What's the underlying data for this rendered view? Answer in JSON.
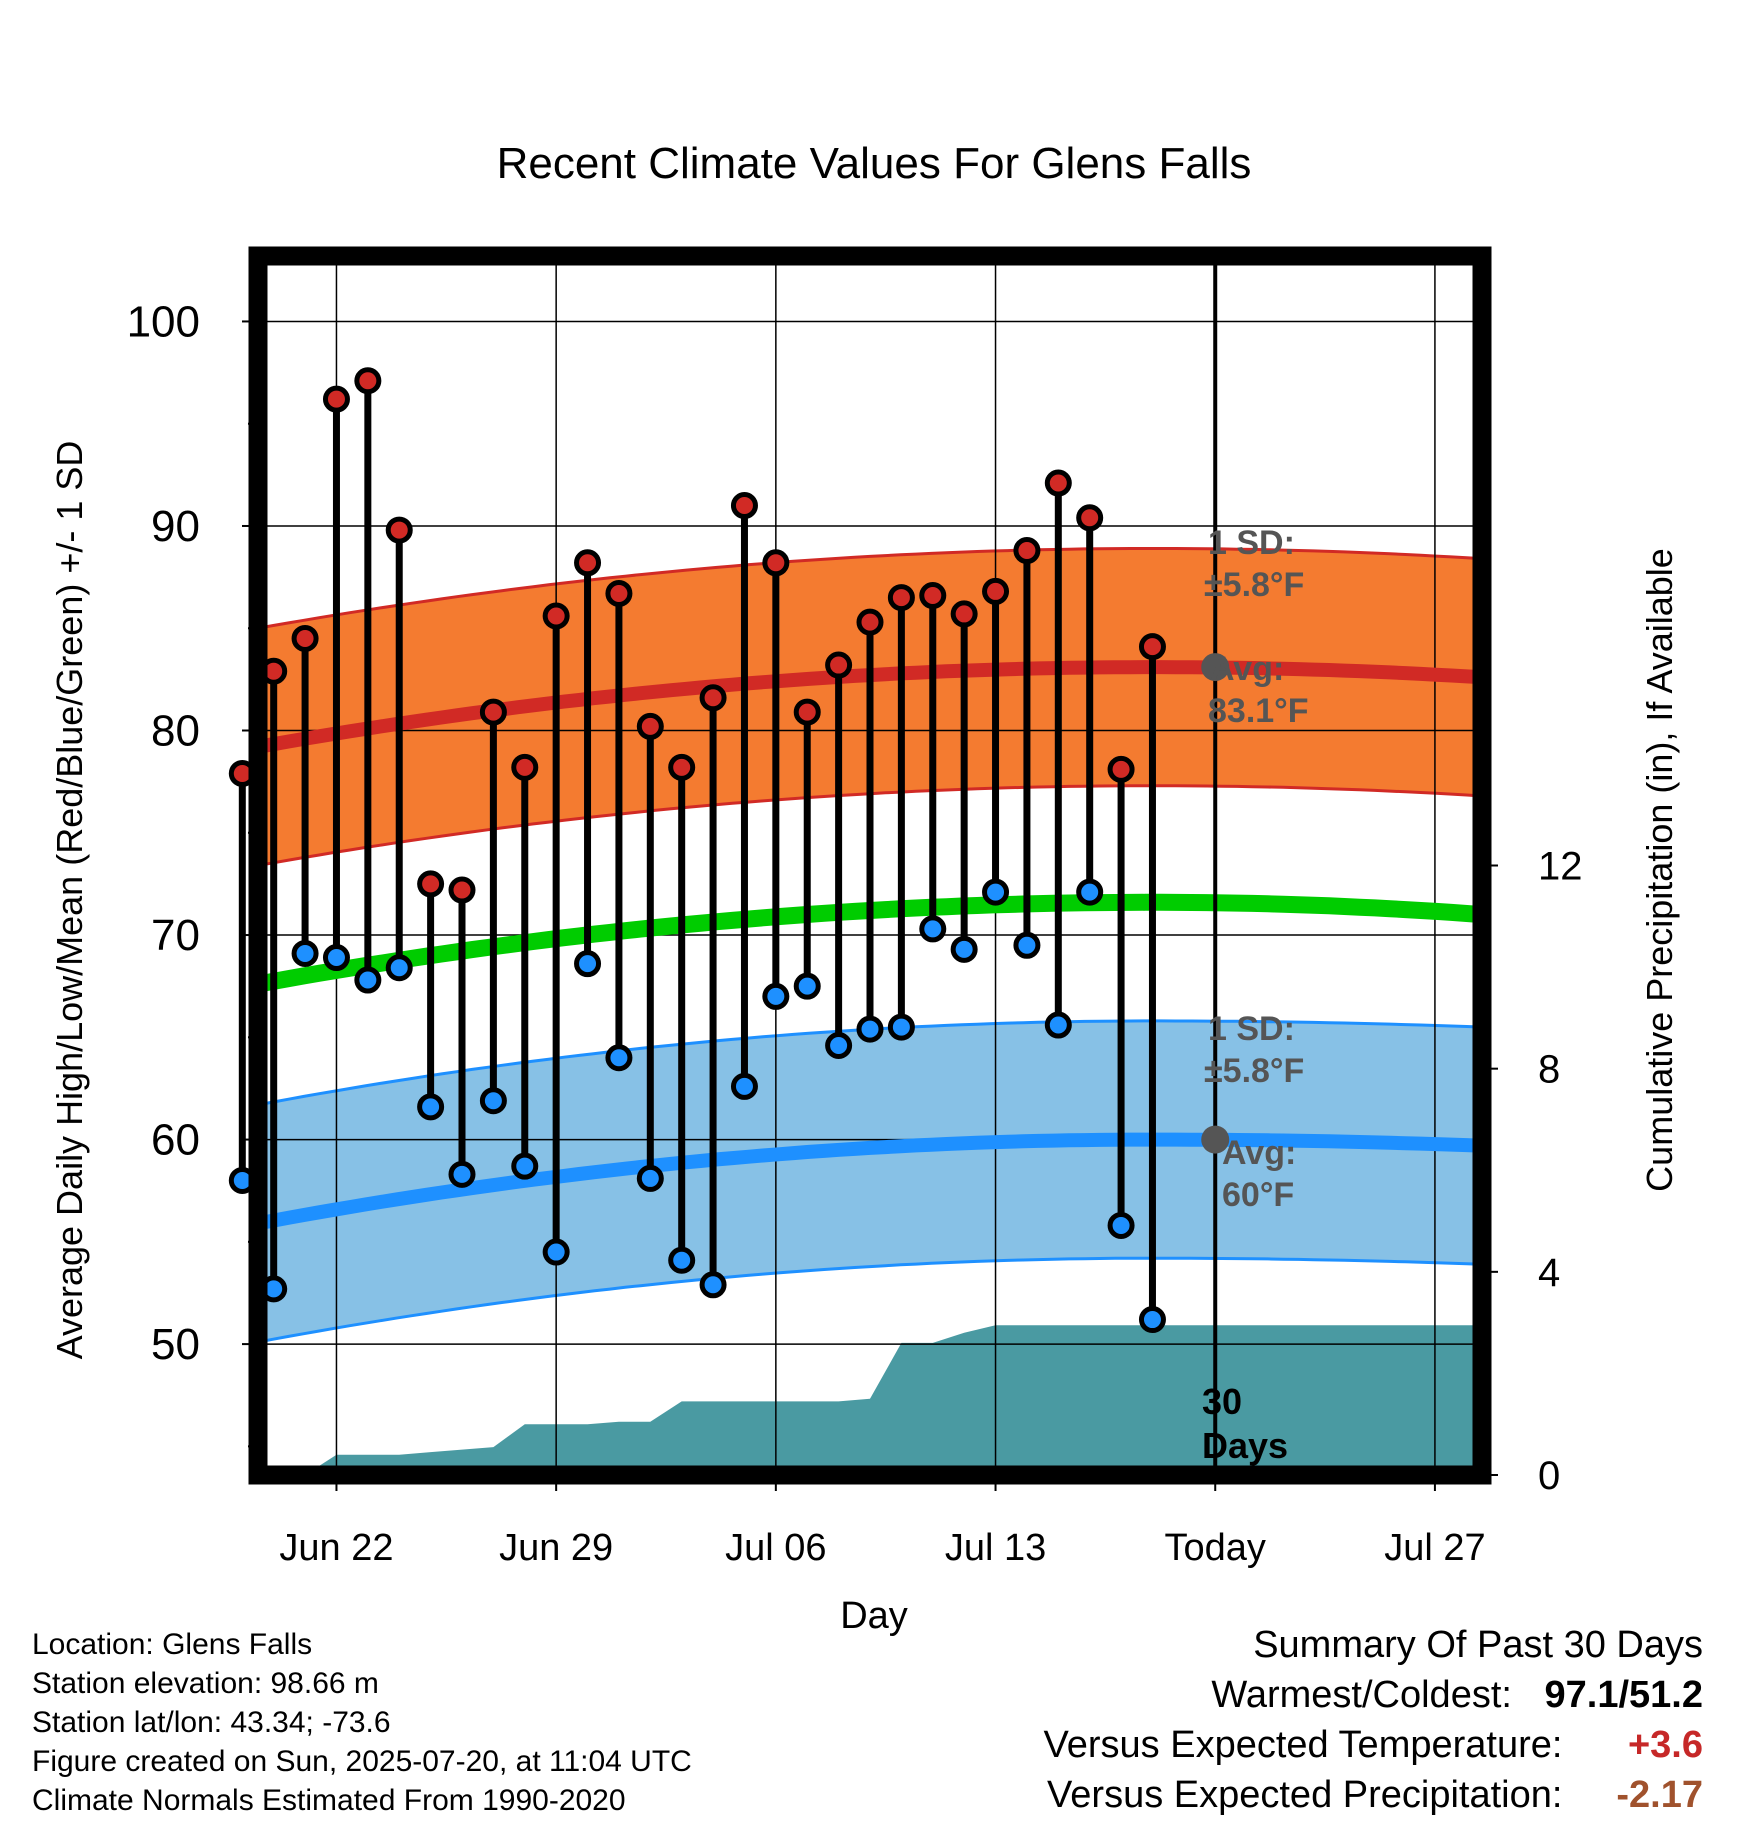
{
  "chart_data": {
    "type": "line",
    "title": "Recent Climate Values For Glens Falls",
    "xlabel": "Day",
    "ylabel": "Average Daily High/Low/Mean (Red/Blue/Green) +/- 1 SD",
    "y2label": "Cumulative Precipitation (in), If Available",
    "x_ticks": [
      "Jun 22",
      "Jun 29",
      "Jul 06",
      "Jul 13",
      "Today",
      "Jul 27"
    ],
    "x_tick_days": [
      2,
      9,
      16,
      23,
      30,
      37
    ],
    "xlim": [
      -0.5,
      38.5
    ],
    "y_ticks": [
      50,
      60,
      70,
      80,
      90,
      100
    ],
    "ylim": [
      43.6,
      103.2
    ],
    "y2_ticks": [
      0,
      4,
      8,
      12
    ],
    "y2lim": [
      0,
      24
    ],
    "grid": true,
    "today_day": 30,
    "days_annotation": [
      "30",
      "Days"
    ],
    "observed": {
      "days": [
        -1,
        0,
        1,
        2,
        3,
        4,
        5,
        6,
        7,
        8,
        9,
        10,
        11,
        12,
        13,
        14,
        15,
        16,
        17,
        18,
        19,
        20,
        21,
        22,
        23,
        24,
        25,
        26,
        27,
        28,
        29
      ],
      "highs": [
        77.9,
        82.9,
        84.5,
        96.2,
        97.1,
        89.8,
        72.5,
        72.2,
        80.9,
        78.2,
        85.6,
        88.2,
        86.7,
        80.2,
        78.2,
        81.6,
        91.0,
        88.2,
        80.9,
        83.2,
        85.3,
        86.5,
        86.6,
        85.7,
        86.8,
        88.8,
        92.1,
        90.4,
        78.1,
        84.1,
        null
      ],
      "lows": [
        58.0,
        52.7,
        69.1,
        68.9,
        67.8,
        68.4,
        61.6,
        58.3,
        61.9,
        58.7,
        54.5,
        68.6,
        64.0,
        58.1,
        54.1,
        52.9,
        62.6,
        67.0,
        67.5,
        64.6,
        65.4,
        65.5,
        70.3,
        69.3,
        72.1,
        69.5,
        65.6,
        72.1,
        55.8,
        51.2,
        null
      ]
    },
    "normals": {
      "avg_high_start": 79.2,
      "avg_high_peak": 83.1,
      "avg_high_end": 82.6,
      "avg_low_start": 55.9,
      "avg_low_peak": 60.0,
      "avg_low_end": 59.7,
      "avg_mean_start": 67.6,
      "avg_mean_peak": 71.6,
      "avg_mean_end": 71.0,
      "sd_high": 5.8,
      "sd_low": 5.8
    },
    "precipitation": {
      "days": [
        -1,
        1,
        2,
        3,
        4,
        5,
        6,
        7,
        8,
        9,
        10,
        11,
        12,
        13,
        14,
        15,
        16,
        17,
        18,
        19,
        20,
        21,
        22,
        23,
        24,
        25,
        26,
        27,
        28,
        29,
        30,
        38.5
      ],
      "cumulative": [
        0,
        0,
        0.4,
        0.4,
        0.4,
        0.45,
        0.5,
        0.55,
        1.0,
        1.0,
        1.0,
        1.05,
        1.05,
        1.45,
        1.45,
        1.45,
        1.45,
        1.45,
        1.45,
        1.5,
        2.6,
        2.6,
        2.8,
        2.95,
        2.95,
        2.95,
        2.95,
        2.95,
        2.95,
        2.95,
        2.95,
        2.95
      ]
    },
    "annotations": {
      "high": {
        "sd_title": "1 SD:",
        "sd_value": "±5.8°F",
        "avg_title": "Avg:",
        "avg_value": "83.1°F"
      },
      "low": {
        "sd_title": "1 SD:",
        "sd_value": "±5.8°F",
        "avg_title": "Avg:",
        "avg_value": "60°F"
      }
    },
    "colors": {
      "high_band": "#f47b30",
      "high_line": "#d12a25",
      "low_band": "#87c1e6",
      "low_line": "#1e90ff",
      "mean_line": "#00cc00",
      "precip": "#4a9aa2",
      "high_dot": "#d12a25",
      "low_dot": "#1e90ff",
      "annotation": "#555555"
    }
  },
  "info": {
    "location": "Location: Glens Falls",
    "elevation": "Station elevation: 98.66 m",
    "latlon": "Station lat/lon: 43.34; -73.6",
    "created": "Figure created on Sun, 2025-07-20, at 11:04 UTC",
    "normals": "Climate Normals Estimated From 1990-2020"
  },
  "summary": {
    "title": "Summary Of Past 30 Days",
    "warm_cold_label": "Warmest/Coldest:",
    "warm_cold_value": "97.1/51.2",
    "temp_label": "Versus Expected Temperature:",
    "temp_value": "+3.6",
    "temp_color": "#c62828",
    "precip_label": "Versus Expected Precipitation:",
    "precip_value": "-2.17",
    "precip_color": "#a0522d"
  }
}
